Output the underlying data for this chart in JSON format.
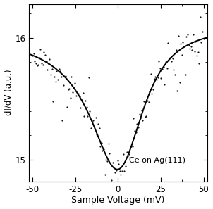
{
  "xlim": [
    -52,
    52
  ],
  "ylim": [
    14.82,
    16.28
  ],
  "xticks": [
    -50,
    -25,
    0,
    25,
    50
  ],
  "yticks": [
    15,
    16
  ],
  "xlabel": "Sample Voltage (mV)",
  "ylabel": "dI/dV (a.u.)",
  "annotation": "Ce on Ag(111)",
  "background_color": "#ffffff",
  "curve_color": "#000000",
  "scatter_color": "#111111",
  "fano_A": 1.15,
  "fano_B": 16.08,
  "fano_q": -0.1,
  "fano_Gamma": 38.0,
  "fano_E0": 1.5,
  "noise_seed": 7,
  "n_points": 150
}
